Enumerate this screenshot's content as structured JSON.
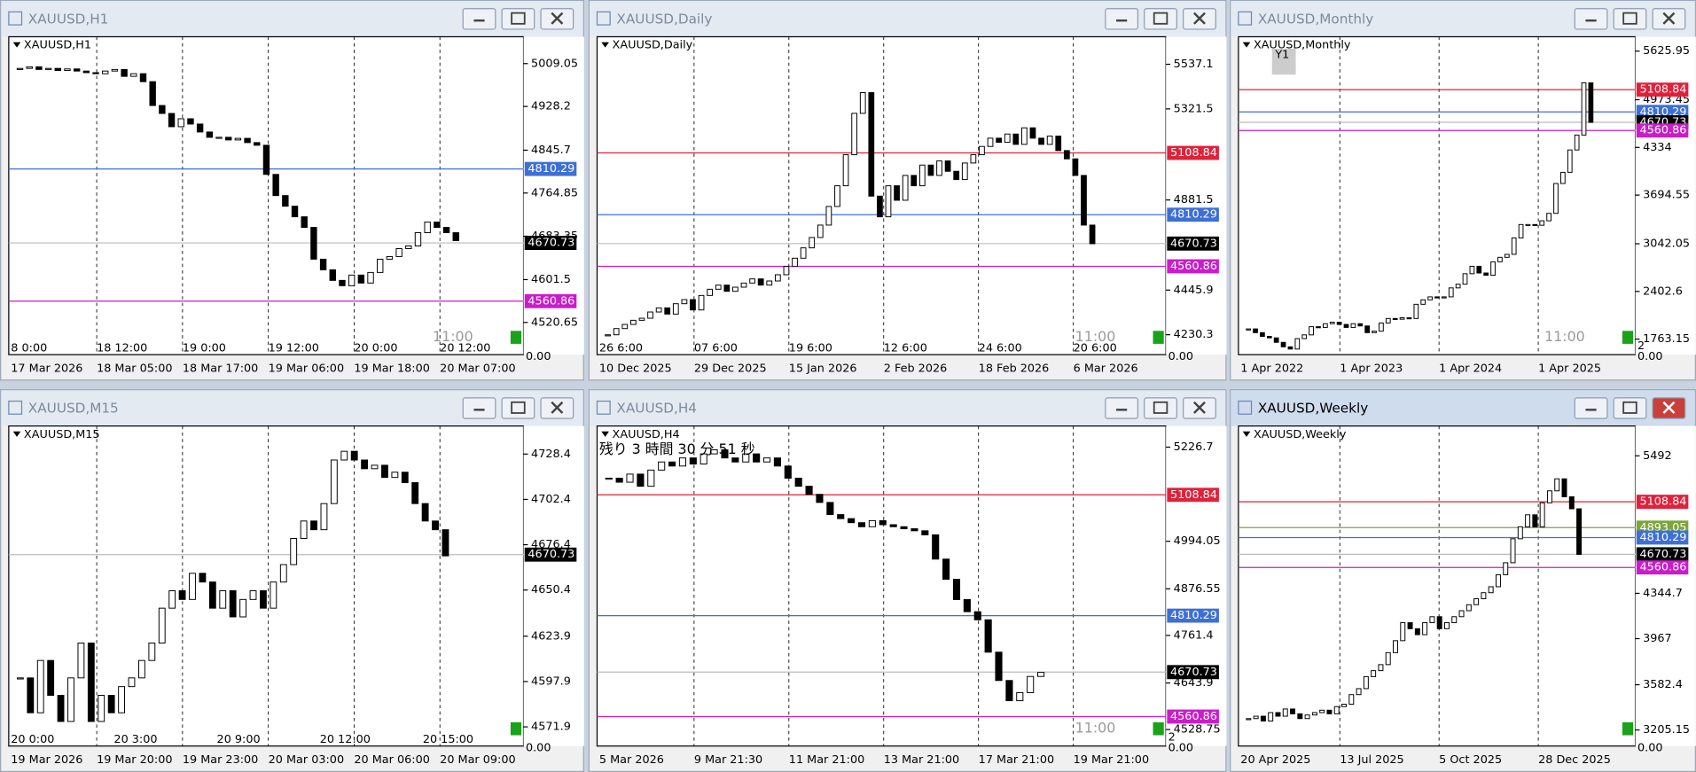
{
  "windows": [
    {
      "title": "XAUUSD,H1",
      "label": "XAUUSD,H1",
      "active": false,
      "ylim": [
        4459.9,
        5059.7
      ],
      "yticks": [
        5009.05,
        4928.2,
        4845.7,
        4764.85,
        4683.35,
        4601.5,
        4520.65
      ],
      "xlabels": [
        "17 Mar 2026",
        "18 Mar 05:00",
        "18 Mar 17:00",
        "19 Mar 06:00",
        "19 Mar 18:00",
        "20 Mar 07:00"
      ],
      "period_labels": [
        "8 0:00",
        "18 12:00",
        "19 0:00",
        "19 12:00",
        "20 0:00",
        "20 12:00"
      ],
      "price_tags": [
        {
          "value": 4810.29,
          "color": "#3d6fd6"
        },
        {
          "value": 4670.73,
          "color": "#000000"
        },
        {
          "value": 4560.86,
          "color": "#c81ec8"
        }
      ],
      "closes": [
        5000,
        5003,
        4998,
        5000,
        4996,
        4999,
        4995,
        4992,
        4990,
        4995,
        4998,
        4985,
        4990,
        4975,
        4930,
        4915,
        4890,
        4905,
        4895,
        4880,
        4870,
        4870,
        4865,
        4868,
        4860,
        4855,
        4800,
        4760,
        4740,
        4720,
        4700,
        4640,
        4620,
        4600,
        4590,
        4610,
        4595,
        4615,
        4640,
        4645,
        4660,
        4665,
        4690,
        4710,
        4700,
        4690,
        4675
      ],
      "timer": "11:00",
      "sub_ticks": [
        "0.00"
      ]
    },
    {
      "title": "XAUUSD,Daily",
      "label": "XAUUSD,Daily",
      "active": false,
      "ylim": [
        4134,
        5670
      ],
      "yticks": [
        5537.1,
        5321.5,
        4881.5,
        4445.9,
        4230.3
      ],
      "xlabels": [
        "10 Dec 2025",
        "29 Dec 2025",
        "15 Jan 2026",
        "2 Feb 2026",
        "18 Feb 2026",
        "6 Mar 2026"
      ],
      "period_labels": [
        "26 6:00",
        "07 6:00",
        "19 6:00",
        "12 6:00",
        "24 6:00",
        "20 6:00"
      ],
      "price_tags": [
        {
          "value": 5108.84,
          "color": "#e0213a"
        },
        {
          "value": 4810.29,
          "color": "#3d6fd6"
        },
        {
          "value": 4670.73,
          "color": "#000000"
        },
        {
          "value": 4560.86,
          "color": "#c81ec8"
        }
      ],
      "closes": [
        4230,
        4260,
        4280,
        4300,
        4310,
        4340,
        4360,
        4330,
        4380,
        4400,
        4350,
        4420,
        4450,
        4470,
        4440,
        4460,
        4480,
        4500,
        4470,
        4490,
        4520,
        4560,
        4600,
        4650,
        4700,
        4760,
        4850,
        4950,
        5100,
        5300,
        5400,
        4900,
        4800,
        4950,
        4880,
        5000,
        4950,
        5050,
        5000,
        5070,
        5020,
        4980,
        5060,
        5100,
        5140,
        5180,
        5160,
        5200,
        5150,
        5230,
        5180,
        5150,
        5190,
        5120,
        5080,
        5000,
        4760,
        4670
      ],
      "timer": "11:00",
      "sub_ticks": [
        "0.00"
      ]
    },
    {
      "title": "XAUUSD,Monthly",
      "label": "XAUUSD,Monthly",
      "active": false,
      "badge": "Y1",
      "ylim": [
        1555,
        5818
      ],
      "yticks": [
        5625.95,
        4973.45,
        4334,
        3694.55,
        3042.05,
        2402.6,
        1763.15
      ],
      "xlabels": [
        "1 Apr 2022",
        "1 Apr 2023",
        "1 Apr 2024",
        "1 Apr 2025"
      ],
      "price_tags": [
        {
          "value": 5108.84,
          "color": "#e0213a"
        },
        {
          "value": 4810.29,
          "color": "#3d6fd6"
        },
        {
          "value": 4670.73,
          "color": "#000000"
        },
        {
          "value": 4560.86,
          "color": "#c81ec8"
        }
      ],
      "closes": [
        1900,
        1850,
        1800,
        1780,
        1720,
        1660,
        1630,
        1770,
        1820,
        1930,
        1920,
        1970,
        1990,
        1960,
        1920,
        1970,
        1940,
        1850,
        1870,
        1980,
        2040,
        2030,
        2050,
        2040,
        2230,
        2290,
        2330,
        2320,
        2330,
        2450,
        2500,
        2640,
        2740,
        2650,
        2620,
        2800,
        2860,
        2900,
        3120,
        3300,
        3300,
        3290,
        3350,
        3450,
        3850,
        4000,
        4300,
        4500,
        5200,
        4670
      ],
      "timer": "11:00",
      "sub_ticks": [
        "2",
        "0.00"
      ]
    },
    {
      "title": "XAUUSD,M15",
      "label": "XAUUSD,M15",
      "active": false,
      "ylim": [
        4560.9,
        4744.5
      ],
      "yticks": [
        4728.4,
        4702.4,
        4676.4,
        4650.4,
        4623.9,
        4597.9,
        4571.9
      ],
      "xlabels": [
        "19 Mar 2026",
        "19 Mar 20:00",
        "19 Mar 23:00",
        "20 Mar 03:00",
        "20 Mar 06:00",
        "20 Mar 09:00"
      ],
      "period_labels": [
        "20 0:00",
        "20 3:00",
        "20 9:00",
        "20 12:00",
        "20 15:00"
      ],
      "price_tags": [
        {
          "value": 4670.73,
          "color": "#000000"
        }
      ],
      "closes": [
        4600,
        4580,
        4610,
        4590,
        4575,
        4600,
        4620,
        4575,
        4590,
        4580,
        4595,
        4600,
        4610,
        4620,
        4640,
        4650,
        4645,
        4660,
        4655,
        4640,
        4650,
        4635,
        4645,
        4650,
        4640,
        4655,
        4665,
        4680,
        4690,
        4685,
        4700,
        4725,
        4730,
        4725,
        4720,
        4722,
        4715,
        4718,
        4712,
        4700,
        4690,
        4685,
        4670
      ],
      "sub_ticks": [
        "0.00"
      ]
    },
    {
      "title": "XAUUSD,H4",
      "label": "XAUUSD,H4",
      "active": false,
      "countdown": "残り 3 時間 30 分 51 秒",
      "ylim": [
        4488,
        5278.9
      ],
      "yticks": [
        5226.7,
        4994.05,
        4876.55,
        4761.4,
        4643.9,
        4528.75
      ],
      "xlabels": [
        "5 Mar 2026",
        "9 Mar 21:30",
        "11 Mar 21:00",
        "13 Mar 21:00",
        "17 Mar 21:00",
        "19 Mar 21:00"
      ],
      "price_tags": [
        {
          "value": 5108.84,
          "color": "#e0213a"
        },
        {
          "value": 4810.29,
          "color": "#3d6fd6"
        },
        {
          "value": 4670.73,
          "color": "#000000"
        },
        {
          "value": 4560.86,
          "color": "#c81ec8"
        }
      ],
      "closes": [
        5150,
        5140,
        5160,
        5130,
        5170,
        5190,
        5180,
        5200,
        5185,
        5210,
        5220,
        5200,
        5190,
        5210,
        5190,
        5200,
        5180,
        5150,
        5130,
        5110,
        5090,
        5060,
        5050,
        5040,
        5030,
        5045,
        5035,
        5030,
        5025,
        5020,
        5010,
        4950,
        4900,
        4850,
        4820,
        4800,
        4720,
        4650,
        4600,
        4620,
        4660,
        4670
      ],
      "timer": "11:00",
      "sub_ticks": [
        "2",
        "0.00"
      ]
    },
    {
      "title": "XAUUSD,Weekly",
      "label": "XAUUSD,Weekly",
      "active": true,
      "ylim": [
        3071,
        5740.6
      ],
      "yticks": [
        5492,
        4344.7,
        3967,
        3582.4,
        3205.15
      ],
      "xlabels": [
        "20 Apr 2025",
        "13 Jul 2025",
        "5 Oct 2025",
        "28 Dec 2025"
      ],
      "price_tags": [
        {
          "value": 5108.84,
          "color": "#e0213a"
        },
        {
          "value": 4893.05,
          "color": "#7ca53a"
        },
        {
          "value": 4810.29,
          "color": "#3d6fd6"
        },
        {
          "value": 4670.73,
          "color": "#000000"
        },
        {
          "value": 4560.86,
          "color": "#c81ec8"
        }
      ],
      "closes": [
        3300,
        3320,
        3280,
        3350,
        3320,
        3380,
        3340,
        3300,
        3330,
        3350,
        3370,
        3340,
        3400,
        3420,
        3500,
        3550,
        3650,
        3700,
        3750,
        3850,
        3950,
        4100,
        4050,
        4000,
        4100,
        4150,
        4050,
        4100,
        4150,
        4200,
        4250,
        4300,
        4350,
        4400,
        4500,
        4600,
        4800,
        4900,
        5000,
        4900,
        5100,
        5200,
        5300,
        5150,
        5050,
        4670
      ],
      "sub_ticks": [
        "0.00"
      ]
    }
  ]
}
